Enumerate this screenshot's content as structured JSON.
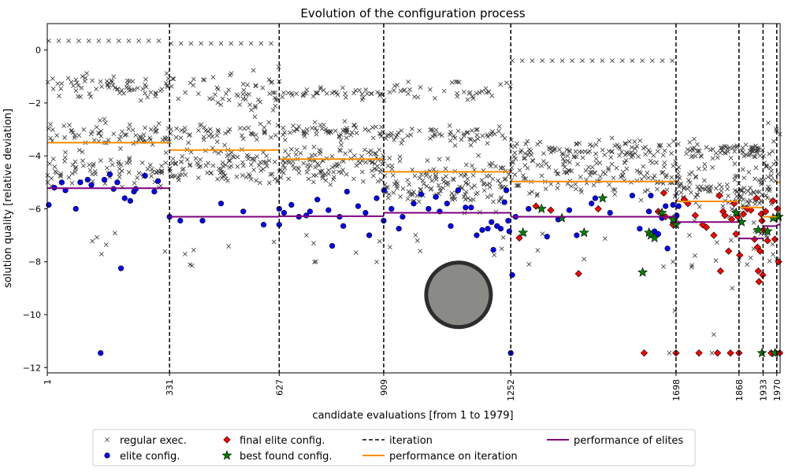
{
  "chart_data": {
    "type": "scatter",
    "title": "Evolution of the configuration process",
    "xlabel": "candidate evaluations [from 1 to 1979]",
    "ylabel": "solution quality [relative deviation]",
    "xlim": [
      1,
      1979
    ],
    "ylim": [
      -12.2,
      1.0
    ],
    "yticks": [
      0,
      -2,
      -4,
      -6,
      -8,
      -10,
      -12
    ],
    "xticks": [
      1,
      331,
      627,
      909,
      1252,
      1698,
      1868,
      1933,
      1970
    ],
    "iterations": [
      331,
      627,
      909,
      1252,
      1698,
      1868,
      1933,
      1970
    ],
    "performance_on_iteration": [
      {
        "x_start": 1,
        "x_end": 331,
        "value": -3.5
      },
      {
        "x_start": 331,
        "x_end": 627,
        "value": -3.78
      },
      {
        "x_start": 627,
        "x_end": 909,
        "value": -4.12
      },
      {
        "x_start": 909,
        "x_end": 1252,
        "value": -4.6
      },
      {
        "x_start": 1252,
        "x_end": 1698,
        "value": -4.97
      },
      {
        "x_start": 1698,
        "x_end": 1868,
        "value": -5.72
      },
      {
        "x_start": 1868,
        "x_end": 1933,
        "value": -5.95
      },
      {
        "x_start": 1933,
        "x_end": 1970,
        "value": -6.3
      },
      {
        "x_start": 1970,
        "x_end": 1979,
        "value": -5.0
      }
    ],
    "performance_of_elites": [
      {
        "x_start": 1,
        "x_end": 331,
        "value": -5.22
      },
      {
        "x_start": 331,
        "x_end": 627,
        "value": -6.3
      },
      {
        "x_start": 627,
        "x_end": 909,
        "value": -6.28
      },
      {
        "x_start": 909,
        "x_end": 1252,
        "value": -6.15
      },
      {
        "x_start": 1252,
        "x_end": 1698,
        "value": -6.3
      },
      {
        "x_start": 1698,
        "x_end": 1868,
        "value": -6.5
      },
      {
        "x_start": 1868,
        "x_end": 1933,
        "value": -7.12
      },
      {
        "x_start": 1933,
        "x_end": 1970,
        "value": -6.65
      },
      {
        "x_start": 1970,
        "x_end": 1979,
        "value": -6.6
      }
    ],
    "regular_exec_bands": [
      {
        "x_start": 1,
        "x_end": 331,
        "bands": [
          {
            "center": -1.4,
            "spread": 0.45,
            "count": 70
          },
          {
            "center": -3.2,
            "spread": 0.5,
            "count": 70
          },
          {
            "center": -4.5,
            "spread": 0.6,
            "count": 80
          }
        ],
        "top_row": 0.35
      },
      {
        "x_start": 331,
        "x_end": 627,
        "bands": [
          {
            "center": -1.5,
            "spread": 0.7,
            "count": 60
          },
          {
            "center": -3.1,
            "spread": 0.35,
            "count": 50
          },
          {
            "center": -4.4,
            "spread": 0.7,
            "count": 110
          }
        ],
        "top_row": 0.25
      },
      {
        "x_start": 627,
        "x_end": 909,
        "bands": [
          {
            "center": -1.65,
            "spread": 0.25,
            "count": 40
          },
          {
            "center": -3.1,
            "spread": 0.3,
            "count": 60
          },
          {
            "center": -4.3,
            "spread": 0.75,
            "count": 120
          }
        ],
        "top_row": null
      },
      {
        "x_start": 909,
        "x_end": 1252,
        "bands": [
          {
            "center": -1.55,
            "spread": 0.35,
            "count": 40
          },
          {
            "center": -3.2,
            "spread": 0.35,
            "count": 60
          },
          {
            "center": -5.0,
            "spread": 0.9,
            "count": 150
          }
        ],
        "top_row": null
      },
      {
        "x_start": 1252,
        "x_end": 1698,
        "bands": [
          {
            "center": -3.8,
            "spread": 0.45,
            "count": 100
          },
          {
            "center": -4.7,
            "spread": 0.75,
            "count": 130
          }
        ],
        "top_row": -0.4
      },
      {
        "x_start": 1698,
        "x_end": 1868,
        "bands": [
          {
            "center": -3.8,
            "spread": 0.3,
            "count": 40
          },
          {
            "center": -5.2,
            "spread": 1.0,
            "count": 80
          }
        ],
        "top_row": null
      },
      {
        "x_start": 1868,
        "x_end": 1933,
        "bands": [
          {
            "center": -3.8,
            "spread": 0.2,
            "count": 30
          },
          {
            "center": -5.3,
            "spread": 0.8,
            "count": 40
          }
        ],
        "top_row": null
      },
      {
        "x_start": 1933,
        "x_end": 1979,
        "bands": [
          {
            "center": -4.2,
            "spread": 1.6,
            "count": 30
          }
        ],
        "top_row": null
      }
    ],
    "elite_config": [
      [
        5,
        -5.85
      ],
      [
        20,
        -5.2
      ],
      [
        40,
        -5.0
      ],
      [
        50,
        -5.3
      ],
      [
        78,
        -6.0
      ],
      [
        90,
        -5.0
      ],
      [
        110,
        -4.9
      ],
      [
        120,
        -5.1
      ],
      [
        145,
        -11.45
      ],
      [
        155,
        -4.9
      ],
      [
        170,
        -4.7
      ],
      [
        180,
        -5.25
      ],
      [
        190,
        -5.0
      ],
      [
        200,
        -8.25
      ],
      [
        210,
        -5.6
      ],
      [
        225,
        -5.7
      ],
      [
        235,
        -5.35
      ],
      [
        240,
        -5.25
      ],
      [
        265,
        -4.75
      ],
      [
        290,
        -5.35
      ],
      [
        300,
        -4.95
      ],
      [
        331,
        -6.3
      ],
      [
        360,
        -6.45
      ],
      [
        420,
        -6.45
      ],
      [
        470,
        -5.8
      ],
      [
        530,
        -6.1
      ],
      [
        585,
        -6.6
      ],
      [
        627,
        -6.6
      ],
      [
        627,
        -6.0
      ],
      [
        640,
        -6.15
      ],
      [
        660,
        -5.85
      ],
      [
        680,
        -6.3
      ],
      [
        700,
        -6.25
      ],
      [
        710,
        -6.1
      ],
      [
        730,
        -5.65
      ],
      [
        760,
        -6.05
      ],
      [
        770,
        -7.4
      ],
      [
        790,
        -6.3
      ],
      [
        800,
        -6.65
      ],
      [
        810,
        -5.35
      ],
      [
        840,
        -5.9
      ],
      [
        860,
        -6.15
      ],
      [
        870,
        -7.0
      ],
      [
        890,
        -5.6
      ],
      [
        910,
        -5.3
      ],
      [
        909,
        -6.45
      ],
      [
        930,
        -6.0
      ],
      [
        950,
        -6.75
      ],
      [
        960,
        -6.3
      ],
      [
        990,
        -5.8
      ],
      [
        1010,
        -5.45
      ],
      [
        1030,
        -6.0
      ],
      [
        1050,
        -5.55
      ],
      [
        1060,
        -6.1
      ],
      [
        1080,
        -5.8
      ],
      [
        1090,
        -6.65
      ],
      [
        1110,
        -5.3
      ],
      [
        1130,
        -5.95
      ],
      [
        1145,
        -5.95
      ],
      [
        1160,
        -7.0
      ],
      [
        1175,
        -6.8
      ],
      [
        1190,
        -6.75
      ],
      [
        1200,
        -6.5
      ],
      [
        1205,
        -7.55
      ],
      [
        1215,
        -6.65
      ],
      [
        1225,
        -6.75
      ],
      [
        1235,
        -5.75
      ],
      [
        1240,
        -5.3
      ],
      [
        1245,
        -6.45
      ],
      [
        1248,
        -6.85
      ],
      [
        1252,
        -11.45
      ],
      [
        1256,
        -8.5
      ],
      [
        1265,
        -6.3
      ],
      [
        1300,
        -6.0
      ],
      [
        1350,
        -7.05
      ],
      [
        1380,
        -6.4
      ],
      [
        1410,
        -6.05
      ],
      [
        1430,
        -7.0
      ],
      [
        1470,
        -5.8
      ],
      [
        1480,
        -5.6
      ],
      [
        1520,
        -6.15
      ],
      [
        1580,
        -5.5
      ],
      [
        1600,
        -6.75
      ],
      [
        1625,
        -6.1
      ],
      [
        1630,
        -5.5
      ],
      [
        1640,
        -6.85
      ],
      [
        1650,
        -6.95
      ],
      [
        1660,
        -6.35
      ],
      [
        1670,
        -5.9
      ],
      [
        1675,
        -7.5
      ],
      [
        1690,
        -5.85
      ],
      [
        1694,
        -6.5
      ],
      [
        1700,
        -6.25
      ],
      [
        1705,
        -5.9
      ]
    ],
    "final_elite_config": [
      [
        1275,
        -7.1
      ],
      [
        1320,
        -5.9
      ],
      [
        1360,
        -6.05
      ],
      [
        1435,
        -8.45
      ],
      [
        1488,
        -6.0
      ],
      [
        1612,
        -11.45
      ],
      [
        1650,
        -6.1
      ],
      [
        1665,
        -5.4
      ],
      [
        1670,
        -6.3
      ],
      [
        1690,
        -6.6
      ],
      [
        1698,
        -11.45
      ],
      [
        1720,
        -5.65
      ],
      [
        1730,
        -5.8
      ],
      [
        1750,
        -6.25
      ],
      [
        1760,
        -11.45
      ],
      [
        1770,
        -6.6
      ],
      [
        1780,
        -6.7
      ],
      [
        1800,
        -7.0
      ],
      [
        1810,
        -11.45
      ],
      [
        1815,
        -5.5
      ],
      [
        1818,
        -8.35
      ],
      [
        1825,
        -6.1
      ],
      [
        1830,
        -6.25
      ],
      [
        1840,
        -7.6
      ],
      [
        1845,
        -11.45
      ],
      [
        1848,
        -6.4
      ],
      [
        1855,
        -5.8
      ],
      [
        1860,
        -6.95
      ],
      [
        1865,
        -6.3
      ],
      [
        1868,
        -11.45
      ],
      [
        1870,
        -7.75
      ],
      [
        1880,
        -6.2
      ],
      [
        1890,
        -6.0
      ],
      [
        1900,
        -6.05
      ],
      [
        1910,
        -7.15
      ],
      [
        1915,
        -5.6
      ],
      [
        1918,
        -7.45
      ],
      [
        1920,
        -8.35
      ],
      [
        1922,
        -8.75
      ],
      [
        1925,
        -7.6
      ],
      [
        1928,
        -6.2
      ],
      [
        1930,
        -6.45
      ],
      [
        1932,
        -8.5
      ],
      [
        1935,
        -6.8
      ],
      [
        1940,
        -6.1
      ],
      [
        1945,
        -7.2
      ],
      [
        1955,
        -11.45
      ],
      [
        1960,
        -5.7
      ],
      [
        1965,
        -7.15
      ],
      [
        1968,
        -11.45
      ],
      [
        1972,
        -6.0
      ],
      [
        1975,
        -8.0
      ],
      [
        1978,
        -11.45
      ]
    ],
    "best_found_config": [
      [
        1285,
        -6.9
      ],
      [
        1335,
        -6.0
      ],
      [
        1390,
        -6.35
      ],
      [
        1450,
        -6.9
      ],
      [
        1500,
        -5.6
      ],
      [
        1608,
        -8.4
      ],
      [
        1625,
        -6.9
      ],
      [
        1630,
        -7.0
      ],
      [
        1640,
        -7.1
      ],
      [
        1660,
        -6.15
      ],
      [
        1690,
        -6.4
      ],
      [
        1698,
        -6.6
      ],
      [
        1860,
        -6.15
      ],
      [
        1875,
        -6.5
      ],
      [
        1920,
        -6.8
      ],
      [
        1930,
        -11.45
      ],
      [
        1945,
        -6.85
      ],
      [
        1960,
        -6.35
      ],
      [
        1965,
        -11.45
      ],
      [
        1975,
        -6.3
      ]
    ],
    "legend": {
      "regular_exec": "regular exec.",
      "elite_config": "elite config.",
      "final_elite_config": "final elite config.",
      "best_found_config": "best found config.",
      "iteration": "iteration",
      "performance_on_iteration": "performance on iteration",
      "performance_of_elites": "performance of elites",
      "position": "bottom-center"
    },
    "colors": {
      "regular": "#333333",
      "elite": "#0000ff",
      "final_elite": "#ff0000",
      "best": "#008000",
      "iteration_line": "#000000",
      "perf_iteration": "#ff8c00",
      "perf_elites": "#800080",
      "overlay_circle": "#8a8a86",
      "overlay_circle_stroke": "#2b2e2d"
    },
    "overlay_circle_center": [
      1111,
      -9.25
    ],
    "grid": false
  }
}
